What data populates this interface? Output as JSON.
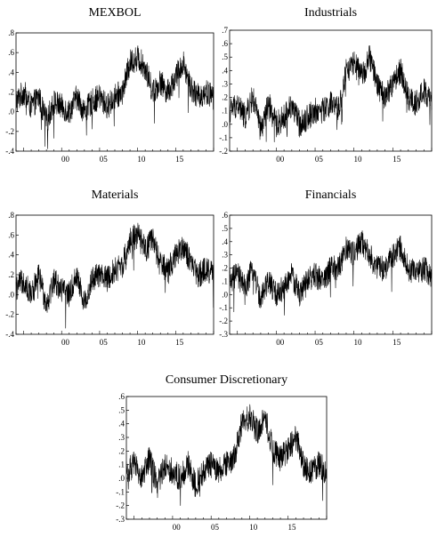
{
  "chart_data": [
    {
      "type": "line",
      "title": "MEXBOL",
      "ylim": [
        -0.4,
        0.8
      ],
      "yticks": [
        ".8",
        ".6",
        ".4",
        ".2",
        ".0",
        "-.2",
        "-.4"
      ],
      "xlim": [
        1994,
        2020
      ],
      "xticks": [
        "00",
        "05",
        "10",
        "15"
      ],
      "grid": false,
      "series": [
        {
          "x": [
            1994,
            1995,
            1996,
            1997,
            1998,
            1999,
            2000,
            2001,
            2002,
            2003,
            2004,
            2005,
            2006,
            2007,
            2008,
            2009,
            2010,
            2011,
            2012,
            2013,
            2014,
            2015,
            2016,
            2017,
            2018,
            2019,
            2020
          ],
          "y": [
            0.1,
            0.2,
            0.05,
            0.15,
            -0.1,
            0.1,
            0.05,
            0.0,
            0.15,
            0.0,
            0.1,
            0.15,
            0.05,
            0.15,
            0.2,
            0.5,
            0.55,
            0.45,
            0.2,
            0.3,
            0.2,
            0.35,
            0.5,
            0.25,
            0.15,
            0.2,
            0.15
          ]
        }
      ]
    },
    {
      "type": "line",
      "title": "Industrials",
      "ylim": [
        -0.2,
        0.7
      ],
      "yticks": [
        ".7",
        ".6",
        ".5",
        ".4",
        ".3",
        ".2",
        ".1",
        ".0",
        "-.1",
        "-.2"
      ],
      "xlim": [
        1994,
        2020
      ],
      "xticks": [
        "00",
        "05",
        "10",
        "15"
      ],
      "grid": false,
      "series": [
        {
          "x": [
            1994,
            1995,
            1996,
            1997,
            1998,
            1999,
            2000,
            2001,
            2002,
            2003,
            2004,
            2005,
            2006,
            2007,
            2008,
            2009,
            2010,
            2011,
            2012,
            2013,
            2014,
            2015,
            2016,
            2017,
            2018,
            2019,
            2020
          ],
          "y": [
            0.1,
            0.15,
            0.05,
            0.2,
            -0.05,
            0.15,
            0.0,
            0.05,
            0.15,
            0.0,
            0.05,
            0.1,
            0.1,
            0.15,
            0.1,
            0.4,
            0.45,
            0.35,
            0.5,
            0.3,
            0.2,
            0.3,
            0.4,
            0.2,
            0.15,
            0.25,
            0.15
          ]
        }
      ]
    },
    {
      "type": "line",
      "title": "Materials",
      "ylim": [
        -0.4,
        0.8
      ],
      "yticks": [
        ".8",
        ".6",
        ".4",
        ".2",
        ".0",
        "-.2",
        "-.4"
      ],
      "xlim": [
        1994,
        2020
      ],
      "xticks": [
        "00",
        "05",
        "10",
        "15"
      ],
      "grid": false,
      "series": [
        {
          "x": [
            1994,
            1995,
            1996,
            1997,
            1998,
            1999,
            2000,
            2001,
            2002,
            2003,
            2004,
            2005,
            2006,
            2007,
            2008,
            2009,
            2010,
            2011,
            2012,
            2013,
            2014,
            2015,
            2016,
            2017,
            2018,
            2019,
            2020
          ],
          "y": [
            0.05,
            0.15,
            0.0,
            0.2,
            -0.1,
            0.15,
            0.05,
            0.0,
            0.2,
            -0.1,
            0.15,
            0.2,
            0.15,
            0.25,
            0.3,
            0.55,
            0.6,
            0.45,
            0.55,
            0.3,
            0.25,
            0.4,
            0.5,
            0.3,
            0.2,
            0.25,
            0.2
          ]
        }
      ]
    },
    {
      "type": "line",
      "title": "Financials",
      "ylim": [
        -0.3,
        0.6
      ],
      "yticks": [
        ".6",
        ".5",
        ".4",
        ".3",
        ".2",
        ".1",
        ".0",
        "-.1",
        "-.2",
        "-.3"
      ],
      "xlim": [
        1994,
        2020
      ],
      "xticks": [
        "00",
        "05",
        "10",
        "15"
      ],
      "grid": false,
      "series": [
        {
          "x": [
            1994,
            1995,
            1996,
            1997,
            1998,
            1999,
            2000,
            2001,
            2002,
            2003,
            2004,
            2005,
            2006,
            2007,
            2008,
            2009,
            2010,
            2011,
            2012,
            2013,
            2014,
            2015,
            2016,
            2017,
            2018,
            2019,
            2020
          ],
          "y": [
            0.1,
            0.15,
            0.05,
            0.2,
            -0.05,
            0.1,
            0.0,
            0.05,
            0.15,
            0.0,
            0.1,
            0.15,
            0.1,
            0.2,
            0.2,
            0.35,
            0.3,
            0.4,
            0.3,
            0.2,
            0.2,
            0.3,
            0.35,
            0.2,
            0.15,
            0.2,
            0.15
          ]
        }
      ]
    },
    {
      "type": "line",
      "title": "Consumer Discretionary",
      "ylim": [
        -0.3,
        0.6
      ],
      "yticks": [
        ".6",
        ".5",
        ".4",
        ".3",
        ".2",
        ".1",
        ".0",
        "-.1",
        "-.2",
        "-.3"
      ],
      "xlim": [
        1994,
        2020
      ],
      "xticks": [
        "00",
        "05",
        "10",
        "15"
      ],
      "grid": false,
      "series": [
        {
          "x": [
            1994,
            1995,
            1996,
            1997,
            1998,
            1999,
            2000,
            2001,
            2002,
            2003,
            2004,
            2005,
            2006,
            2007,
            2008,
            2009,
            2010,
            2011,
            2012,
            2013,
            2014,
            2015,
            2016,
            2017,
            2018,
            2019,
            2020
          ],
          "y": [
            0.05,
            0.1,
            0.0,
            0.15,
            -0.05,
            0.1,
            0.05,
            0.0,
            0.1,
            -0.05,
            0.05,
            0.1,
            0.05,
            0.1,
            0.15,
            0.4,
            0.45,
            0.35,
            0.45,
            0.2,
            0.15,
            0.2,
            0.3,
            0.1,
            0.05,
            0.1,
            0.05
          ]
        }
      ]
    }
  ]
}
